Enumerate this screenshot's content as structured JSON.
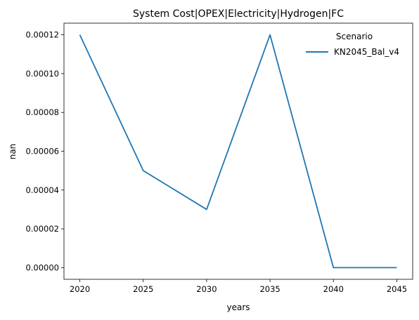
{
  "chart_data": {
    "type": "line",
    "title": "System Cost|OPEX|Electricity|Hydrogen|FC",
    "xlabel": "years",
    "ylabel": "nan",
    "x": [
      2020,
      2025,
      2030,
      2035,
      2040,
      2045
    ],
    "x_ticks": [
      "2020",
      "2025",
      "2030",
      "2035",
      "2040",
      "2045"
    ],
    "y_ticks": [
      "0.00000",
      "0.00002",
      "0.00004",
      "0.00006",
      "0.00008",
      "0.00010",
      "0.00012"
    ],
    "y_tick_values": [
      0,
      2e-05,
      4e-05,
      6e-05,
      8e-05,
      0.0001,
      0.00012
    ],
    "xlim": [
      2018.75,
      2046.25
    ],
    "ylim": [
      -6e-06,
      0.000126
    ],
    "grid": false,
    "legend": {
      "title": "Scenario",
      "placement": "top-right"
    },
    "series": [
      {
        "name": "KN2045_Bal_v4",
        "color": "#1f77b4",
        "values": [
          0.00012,
          5e-05,
          3e-05,
          0.00012,
          0.0,
          0.0
        ]
      }
    ]
  }
}
